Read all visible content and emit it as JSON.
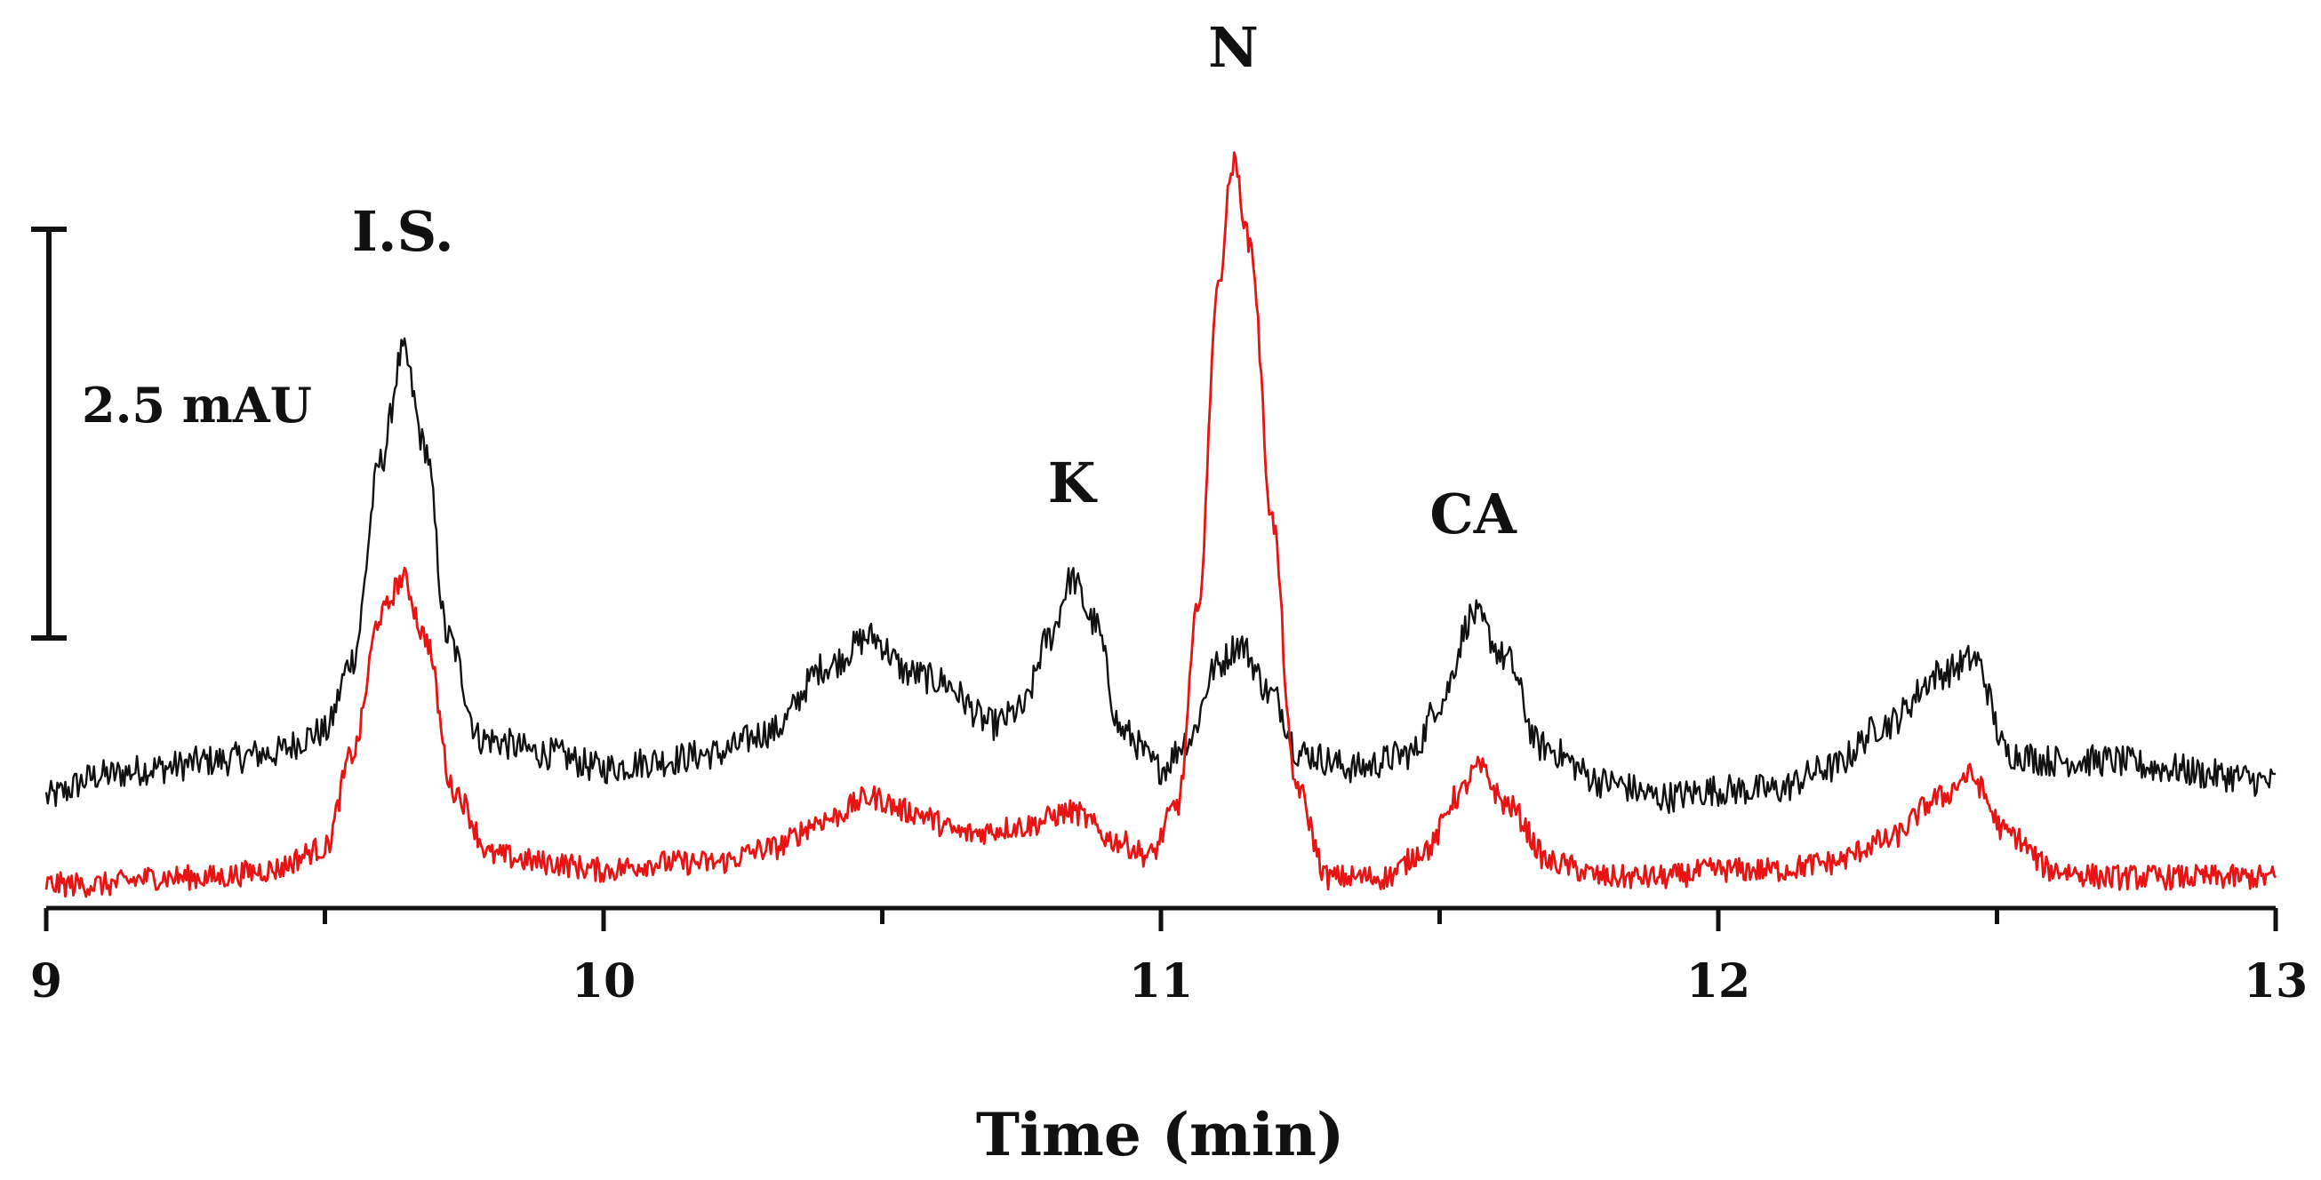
{
  "chart_data": {
    "type": "line",
    "xlabel": "Time (min)",
    "ylabel": "",
    "xlim": [
      9,
      13
    ],
    "ylim": [
      0,
      11
    ],
    "x_ticks": [
      9,
      10,
      11,
      12,
      13
    ],
    "x_tick_labels": [
      "9",
      "10",
      "11",
      "12",
      "13"
    ],
    "scale_bar": {
      "label": "2.5 mAU",
      "value": 5
    },
    "grid": false,
    "legend": "none",
    "series": [
      {
        "color": "#111111",
        "points": [
          [
            9.0,
            1.4
          ],
          [
            9.1,
            1.7
          ],
          [
            9.2,
            1.8
          ],
          [
            9.3,
            1.9
          ],
          [
            9.4,
            2.0
          ],
          [
            9.5,
            2.3
          ],
          [
            9.55,
            3.3
          ],
          [
            9.6,
            6.0
          ],
          [
            9.64,
            7.5
          ],
          [
            9.68,
            6.2
          ],
          [
            9.72,
            3.6
          ],
          [
            9.78,
            2.2
          ],
          [
            9.9,
            2.0
          ],
          [
            10.0,
            1.8
          ],
          [
            10.1,
            1.9
          ],
          [
            10.2,
            2.0
          ],
          [
            10.3,
            2.3
          ],
          [
            10.4,
            3.2
          ],
          [
            10.48,
            3.6
          ],
          [
            10.55,
            3.1
          ],
          [
            10.6,
            3.0
          ],
          [
            10.7,
            2.4
          ],
          [
            10.75,
            2.6
          ],
          [
            10.8,
            3.6
          ],
          [
            10.84,
            4.4
          ],
          [
            10.88,
            3.8
          ],
          [
            10.93,
            2.3
          ],
          [
            11.0,
            1.8
          ],
          [
            11.05,
            2.2
          ],
          [
            11.1,
            3.2
          ],
          [
            11.14,
            3.5
          ],
          [
            11.2,
            2.8
          ],
          [
            11.25,
            2.0
          ],
          [
            11.35,
            1.8
          ],
          [
            11.45,
            2.0
          ],
          [
            11.5,
            2.7
          ],
          [
            11.56,
            3.9
          ],
          [
            11.62,
            3.3
          ],
          [
            11.68,
            2.1
          ],
          [
            11.8,
            1.6
          ],
          [
            11.9,
            1.4
          ],
          [
            12.0,
            1.5
          ],
          [
            12.1,
            1.5
          ],
          [
            12.2,
            1.8
          ],
          [
            12.3,
            2.4
          ],
          [
            12.4,
            3.1
          ],
          [
            12.46,
            3.3
          ],
          [
            12.52,
            2.0
          ],
          [
            12.6,
            1.9
          ],
          [
            12.7,
            1.9
          ],
          [
            12.8,
            1.8
          ],
          [
            12.9,
            1.7
          ],
          [
            13.0,
            1.6
          ]
        ]
      },
      {
        "color": "#e81414",
        "points": [
          [
            9.0,
            0.2
          ],
          [
            9.1,
            0.2
          ],
          [
            9.2,
            0.3
          ],
          [
            9.3,
            0.3
          ],
          [
            9.4,
            0.4
          ],
          [
            9.5,
            0.7
          ],
          [
            9.55,
            2.0
          ],
          [
            9.6,
            3.9
          ],
          [
            9.64,
            4.4
          ],
          [
            9.68,
            3.6
          ],
          [
            9.73,
            1.5
          ],
          [
            9.8,
            0.6
          ],
          [
            9.9,
            0.5
          ],
          [
            10.0,
            0.4
          ],
          [
            10.1,
            0.5
          ],
          [
            10.2,
            0.5
          ],
          [
            10.3,
            0.7
          ],
          [
            10.4,
            1.1
          ],
          [
            10.48,
            1.4
          ],
          [
            10.55,
            1.2
          ],
          [
            10.65,
            0.9
          ],
          [
            10.75,
            1.0
          ],
          [
            10.84,
            1.2
          ],
          [
            10.92,
            0.8
          ],
          [
            10.98,
            0.6
          ],
          [
            11.03,
            1.3
          ],
          [
            11.07,
            4.2
          ],
          [
            11.1,
            8.3
          ],
          [
            11.13,
            10.1
          ],
          [
            11.16,
            9.0
          ],
          [
            11.2,
            5.2
          ],
          [
            11.24,
            1.6
          ],
          [
            11.3,
            0.3
          ],
          [
            11.4,
            0.3
          ],
          [
            11.48,
            0.7
          ],
          [
            11.53,
            1.4
          ],
          [
            11.57,
            1.8
          ],
          [
            11.62,
            1.3
          ],
          [
            11.7,
            0.5
          ],
          [
            11.8,
            0.3
          ],
          [
            11.9,
            0.3
          ],
          [
            12.0,
            0.4
          ],
          [
            12.1,
            0.4
          ],
          [
            12.2,
            0.5
          ],
          [
            12.3,
            0.8
          ],
          [
            12.4,
            1.4
          ],
          [
            12.45,
            1.7
          ],
          [
            12.52,
            0.9
          ],
          [
            12.6,
            0.4
          ],
          [
            12.7,
            0.3
          ],
          [
            12.8,
            0.3
          ],
          [
            12.9,
            0.3
          ],
          [
            13.0,
            0.3
          ]
        ]
      }
    ],
    "annotations": [
      {
        "text": "I.S.",
        "x": 9.64
      },
      {
        "text": "K",
        "x": 10.84
      },
      {
        "text": "N",
        "x": 11.13
      },
      {
        "text": "CA",
        "x": 11.56
      }
    ]
  }
}
